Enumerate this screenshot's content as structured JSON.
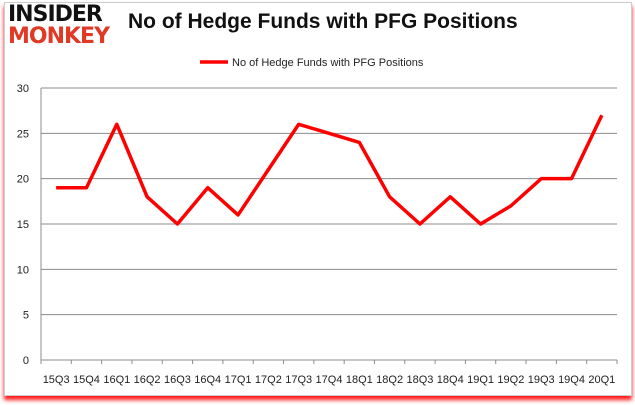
{
  "logo": {
    "line1": "INSIDER",
    "line2": "MONKEY"
  },
  "chart_data": {
    "type": "line",
    "title": "No of Hedge Funds with PFG Positions",
    "categories": [
      "15Q3",
      "15Q4",
      "16Q1",
      "16Q2",
      "16Q3",
      "16Q4",
      "17Q1",
      "17Q2",
      "17Q3",
      "17Q4",
      "18Q1",
      "18Q2",
      "18Q3",
      "18Q4",
      "19Q1",
      "19Q2",
      "19Q3",
      "19Q4",
      "20Q1"
    ],
    "series": [
      {
        "name": "No of Hedge Funds with PFG Positions",
        "values": [
          19,
          19,
          26,
          18,
          15,
          19,
          16,
          21,
          26,
          25,
          24,
          18,
          15,
          18,
          15,
          17,
          20,
          20,
          27
        ],
        "color": "#ff0000"
      }
    ],
    "ylim": [
      0,
      30
    ],
    "yticks": [
      0,
      5,
      10,
      15,
      20,
      25,
      30
    ],
    "grid": true,
    "legend": "top-center"
  }
}
